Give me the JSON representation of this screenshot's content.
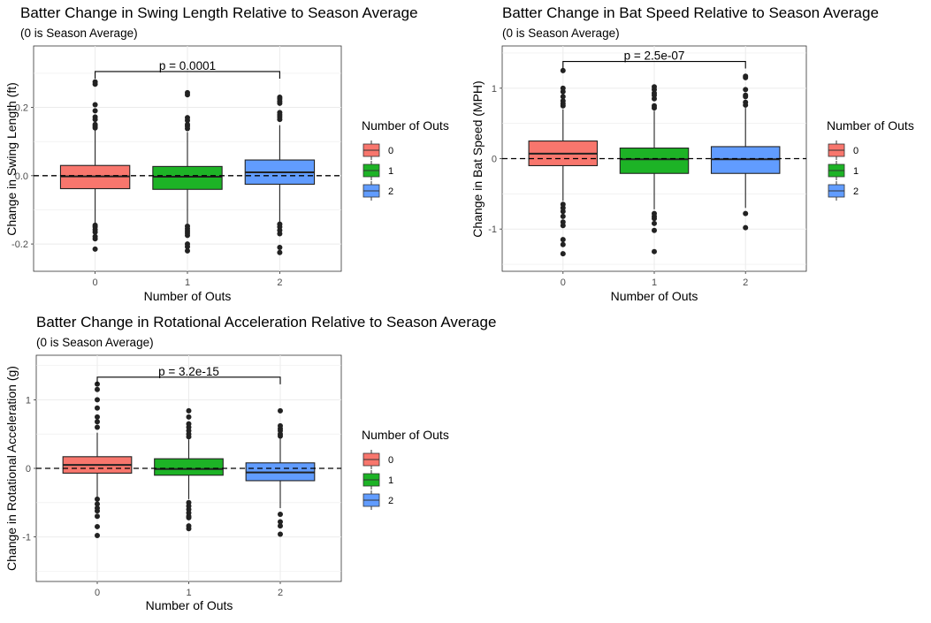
{
  "colors": {
    "0": "#F8766D",
    "1": "#1DB326",
    "2": "#619CFF"
  },
  "chart_data": [
    {
      "type": "box",
      "title": "Batter Change in Swing Length Relative to Season Average",
      "subtitle": "(0 is Season Average)",
      "xlabel": "Number of Outs",
      "ylabel": "Change in Swing Length (ft)",
      "categories": [
        "0",
        "1",
        "2"
      ],
      "ylim": [
        -0.28,
        0.38
      ],
      "yticks": [
        -0.2,
        0.0,
        0.2
      ],
      "ytick_labels": [
        "-0.2",
        "0.0",
        "0.2"
      ],
      "boxes": [
        {
          "category": "0",
          "q1": -0.038,
          "median": -0.002,
          "q3": 0.03,
          "mean": 0.0,
          "whisker_low": -0.138,
          "whisker_high": 0.135,
          "outliers": [
            0.275,
            0.268,
            0.208,
            0.19,
            0.172,
            0.165,
            0.15,
            0.145,
            0.14,
            -0.145,
            -0.15,
            -0.158,
            -0.165,
            -0.178,
            -0.185,
            -0.215
          ]
        },
        {
          "category": "1",
          "q1": -0.04,
          "median": -0.003,
          "q3": 0.027,
          "mean": 0.0,
          "whisker_low": -0.14,
          "whisker_high": 0.128,
          "outliers": [
            0.243,
            0.237,
            0.17,
            0.162,
            0.15,
            0.145,
            0.138,
            -0.148,
            -0.155,
            -0.162,
            -0.168,
            -0.175,
            -0.2,
            -0.208,
            -0.22
          ]
        },
        {
          "category": "2",
          "q1": -0.025,
          "median": 0.01,
          "q3": 0.046,
          "mean": 0.0,
          "whisker_low": -0.135,
          "whisker_high": 0.148,
          "outliers": [
            0.23,
            0.225,
            0.218,
            0.212,
            0.185,
            0.178,
            0.172,
            0.165,
            -0.142,
            -0.15,
            -0.16,
            -0.17,
            -0.21,
            -0.225
          ]
        }
      ],
      "reference_line": 0,
      "comparison": {
        "from": "0",
        "to": "2",
        "label": "p = 0.0001",
        "y": 0.305
      },
      "legend": {
        "title": "Number of Outs",
        "labels": [
          "0",
          "1",
          "2"
        ],
        "position": "right"
      }
    },
    {
      "type": "box",
      "title": "Batter Change in Bat Speed Relative to Season Average",
      "subtitle": "(0 is Season Average)",
      "xlabel": "Number of Outs",
      "ylabel": "Change in Bat Speed (MPH)",
      "categories": [
        "0",
        "1",
        "2"
      ],
      "ylim": [
        -1.6,
        1.6
      ],
      "yticks": [
        -1,
        0,
        1
      ],
      "ytick_labels": [
        "-1",
        "0",
        "1"
      ],
      "boxes": [
        {
          "category": "0",
          "q1": -0.1,
          "median": 0.07,
          "q3": 0.25,
          "mean": 0.0,
          "whisker_low": -0.6,
          "whisker_high": 0.7,
          "outliers": [
            1.25,
            1.0,
            0.95,
            0.88,
            0.82,
            0.78,
            0.75,
            -0.65,
            -0.7,
            -0.75,
            -0.82,
            -0.9,
            -0.95,
            -1.15,
            -1.22,
            -1.35
          ]
        },
        {
          "category": "1",
          "q1": -0.21,
          "median": -0.01,
          "q3": 0.15,
          "mean": 0.0,
          "whisker_low": -0.72,
          "whisker_high": 0.68,
          "outliers": [
            1.02,
            0.98,
            0.93,
            0.9,
            0.85,
            0.75,
            0.72,
            -0.78,
            -0.82,
            -0.85,
            -0.92,
            -1.02,
            -1.32
          ]
        },
        {
          "category": "2",
          "q1": -0.21,
          "median": -0.01,
          "q3": 0.17,
          "mean": 0.0,
          "whisker_low": -0.7,
          "whisker_high": 0.72,
          "outliers": [
            1.17,
            1.15,
            0.98,
            0.9,
            0.88,
            0.8,
            0.76,
            -0.78,
            -0.98
          ]
        }
      ],
      "reference_line": 0,
      "comparison": {
        "from": "0",
        "to": "2",
        "label": "p = 2.5e-07",
        "y": 1.38
      },
      "legend": {
        "title": "Number of Outs",
        "labels": [
          "0",
          "1",
          "2"
        ],
        "position": "right"
      }
    },
    {
      "type": "box",
      "title": "Batter Change in Rotational Acceleration Relative to Season Average",
      "subtitle": "(0 is Season Average)",
      "xlabel": "Number of Outs",
      "ylabel": "Change in Rotational Acceleration (g)",
      "categories": [
        "0",
        "1",
        "2"
      ],
      "ylim": [
        -1.65,
        1.65
      ],
      "yticks": [
        -1,
        0,
        1
      ],
      "ytick_labels": [
        "-1",
        "0",
        "1"
      ],
      "boxes": [
        {
          "category": "0",
          "q1": -0.07,
          "median": 0.05,
          "q3": 0.17,
          "mean": 0.0,
          "whisker_low": -0.42,
          "whisker_high": 0.52,
          "outliers": [
            1.23,
            1.15,
            1.0,
            0.88,
            0.75,
            0.68,
            0.6,
            -0.45,
            -0.52,
            -0.58,
            -0.62,
            -0.7,
            -0.85,
            -0.98
          ]
        },
        {
          "category": "1",
          "q1": -0.1,
          "median": -0.01,
          "q3": 0.14,
          "mean": 0.0,
          "whisker_low": -0.45,
          "whisker_high": 0.42,
          "outliers": [
            0.84,
            0.75,
            0.65,
            0.6,
            0.55,
            0.5,
            0.46,
            -0.5,
            -0.55,
            -0.6,
            -0.65,
            -0.7,
            -0.72,
            -0.84,
            -0.88
          ]
        },
        {
          "category": "2",
          "q1": -0.18,
          "median": -0.06,
          "q3": 0.08,
          "mean": 0.0,
          "whisker_low": -0.58,
          "whisker_high": 0.44,
          "outliers": [
            0.84,
            0.62,
            0.58,
            0.55,
            0.5,
            0.47,
            -0.67,
            -0.78,
            -0.84,
            -0.96
          ]
        }
      ],
      "reference_line": 0,
      "comparison": {
        "from": "0",
        "to": "2",
        "label": "p = 3.2e-15",
        "y": 1.33
      },
      "legend": {
        "title": "Number of Outs",
        "labels": [
          "0",
          "1",
          "2"
        ],
        "position": "right"
      }
    }
  ]
}
